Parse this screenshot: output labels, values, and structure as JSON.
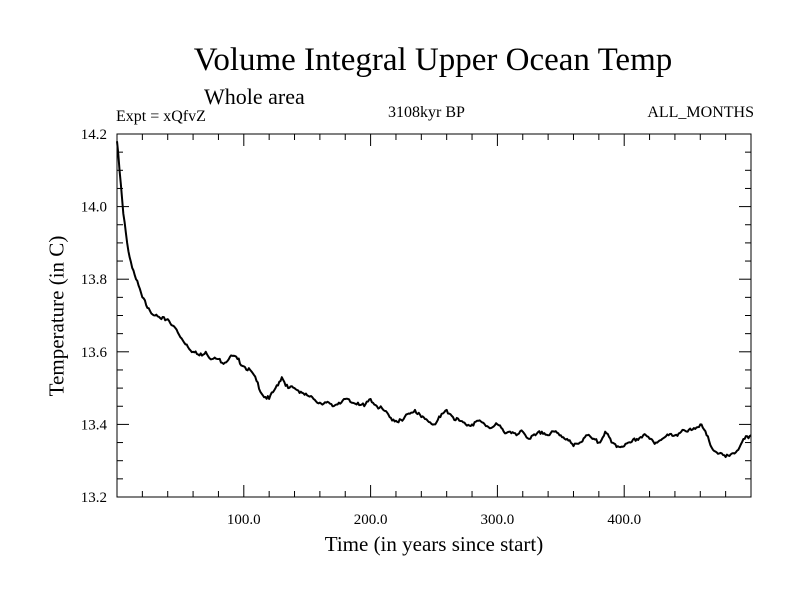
{
  "chart_data": {
    "type": "line",
    "title": "Volume Integral Upper Ocean Temp",
    "subtitle": "Whole area",
    "expt_label": "Expt = xQfvZ",
    "center_label": "3108kyr BP",
    "right_label": "ALL_MONTHS",
    "xlabel": "Time (in years since start)",
    "ylabel": "Temperature (in C)",
    "xlim": [
      0,
      500
    ],
    "ylim": [
      13.2,
      14.2
    ],
    "x_ticks": [
      100,
      200,
      300,
      400
    ],
    "x_tick_labels": [
      "100.0",
      "200.0",
      "300.0",
      "400.0"
    ],
    "y_ticks": [
      13.2,
      13.4,
      13.6,
      13.8,
      14.0,
      14.2
    ],
    "y_tick_labels": [
      "13.2",
      "13.4",
      "13.6",
      "13.8",
      "14.0",
      "14.2"
    ],
    "grid": false,
    "series": [
      {
        "name": "Temperature",
        "x": [
          0,
          2,
          5,
          8,
          10,
          15,
          20,
          25,
          30,
          35,
          40,
          45,
          50,
          55,
          60,
          65,
          70,
          75,
          80,
          85,
          90,
          95,
          100,
          105,
          110,
          115,
          120,
          125,
          130,
          135,
          140,
          145,
          150,
          155,
          160,
          165,
          170,
          175,
          180,
          185,
          190,
          195,
          200,
          205,
          210,
          215,
          220,
          225,
          230,
          235,
          240,
          245,
          250,
          255,
          260,
          265,
          270,
          275,
          280,
          285,
          290,
          295,
          300,
          305,
          310,
          315,
          320,
          325,
          330,
          335,
          340,
          345,
          350,
          355,
          360,
          365,
          370,
          375,
          380,
          385,
          390,
          395,
          400,
          405,
          410,
          415,
          420,
          425,
          430,
          435,
          440,
          445,
          450,
          455,
          460,
          465,
          470,
          475,
          480,
          485,
          490,
          495,
          500
        ],
        "values": [
          14.18,
          14.1,
          13.98,
          13.9,
          13.86,
          13.8,
          13.75,
          13.72,
          13.7,
          13.69,
          13.69,
          13.67,
          13.64,
          13.62,
          13.6,
          13.59,
          13.6,
          13.58,
          13.58,
          13.57,
          13.59,
          13.58,
          13.56,
          13.55,
          13.52,
          13.48,
          13.47,
          13.5,
          13.53,
          13.5,
          13.5,
          13.49,
          13.48,
          13.47,
          13.46,
          13.46,
          13.45,
          13.46,
          13.47,
          13.46,
          13.46,
          13.45,
          13.47,
          13.45,
          13.44,
          13.42,
          13.41,
          13.41,
          13.43,
          13.44,
          13.42,
          13.41,
          13.4,
          13.42,
          13.44,
          13.42,
          13.41,
          13.4,
          13.4,
          13.41,
          13.4,
          13.39,
          13.4,
          13.38,
          13.38,
          13.37,
          13.38,
          13.36,
          13.37,
          13.38,
          13.37,
          13.38,
          13.37,
          13.36,
          13.34,
          13.35,
          13.37,
          13.36,
          13.35,
          13.38,
          13.35,
          13.34,
          13.34,
          13.35,
          13.36,
          13.37,
          13.36,
          13.35,
          13.36,
          13.37,
          13.37,
          13.38,
          13.38,
          13.39,
          13.4,
          13.37,
          13.33,
          13.32,
          13.31,
          13.32,
          13.33,
          13.36,
          13.37
        ]
      }
    ]
  }
}
